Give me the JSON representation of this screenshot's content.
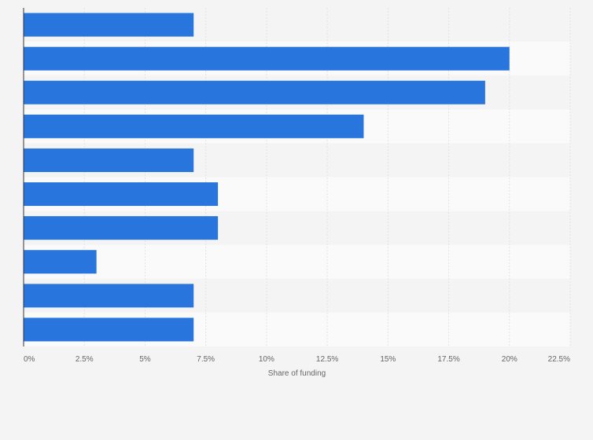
{
  "chart_data": {
    "type": "bar",
    "orientation": "horizontal",
    "categories": [
      "",
      "",
      "",
      "",
      "",
      "",
      "",
      "",
      "",
      ""
    ],
    "values": [
      7,
      20,
      19,
      14,
      7,
      8,
      8,
      3,
      7,
      7
    ],
    "unit": "%",
    "title": "",
    "xlabel": "Share of funding",
    "ylabel": "",
    "xlim": [
      0,
      22.5
    ],
    "x_ticks": [
      "0%",
      "2.5%",
      "5%",
      "7.5%",
      "10%",
      "12.5%",
      "15%",
      "17.5%",
      "20%",
      "22.5%"
    ],
    "grid": true,
    "legend": "none",
    "colors": {
      "bar": "#2876dd",
      "background": "#f4f4f4",
      "band_light": "#fafafa",
      "band_dark": "#f4f4f4",
      "grid": "#e2e2e2",
      "axis": "#333333",
      "text": "#666666"
    }
  }
}
